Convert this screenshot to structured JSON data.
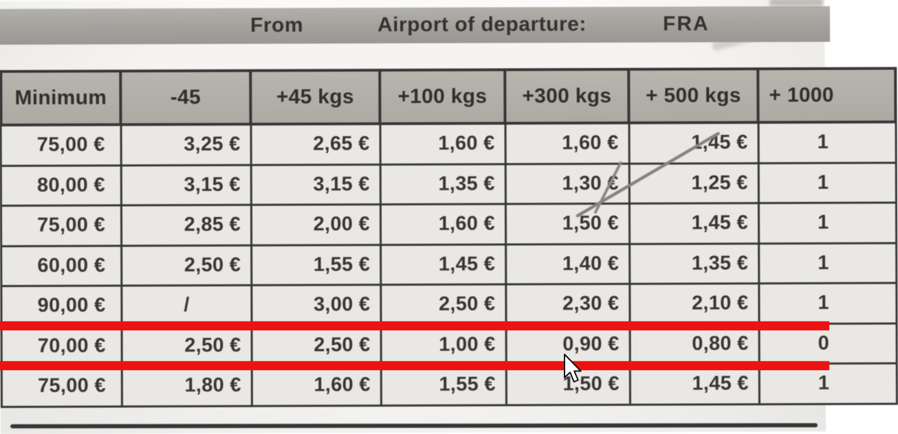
{
  "photo_header": {
    "from_label": "From",
    "departure_label": "Airport of departure:",
    "airport_code": "FRA"
  },
  "rate_table": {
    "columns": [
      "Minimum",
      "-45",
      "+45 kgs",
      "+100 kgs",
      "+300 kgs",
      "+ 500 kgs",
      "+ 1000"
    ],
    "rows": [
      [
        "75,00 €",
        "3,25 €",
        "2,65 €",
        "1,60 €",
        "1,60 €",
        "1,45 €",
        "1"
      ],
      [
        "80,00 €",
        "3,15 €",
        "3,15 €",
        "1,35 €",
        "1,30 €",
        "1,25 €",
        "1"
      ],
      [
        "75,00 €",
        "2,85 €",
        "2,00 €",
        "1,60 €",
        "1,50 €",
        "1,45 €",
        "1"
      ],
      [
        "60,00 €",
        "2,50 €",
        "1,55 €",
        "1,45 €",
        "1,40 €",
        "1,35 €",
        "1"
      ],
      [
        "90,00 €",
        "/",
        "3,00 €",
        "2,50 €",
        "2,30 €",
        "2,10 €",
        "1"
      ],
      [
        "70,00 €",
        "2,50 €",
        "2,50 €",
        "1,00 €",
        "0,90 €",
        "0,80 €",
        "0"
      ],
      [
        "75,00 €",
        "1,80 €",
        "1,60 €",
        "1,55 €",
        "1,50 €",
        "1,45 €",
        "1"
      ]
    ],
    "highlighted_row_index": 5,
    "highlight_color": "#ee1212"
  },
  "icons": {
    "cursor": "arrow-pointer",
    "pen_mark": "diagonal-pen-stroke"
  }
}
